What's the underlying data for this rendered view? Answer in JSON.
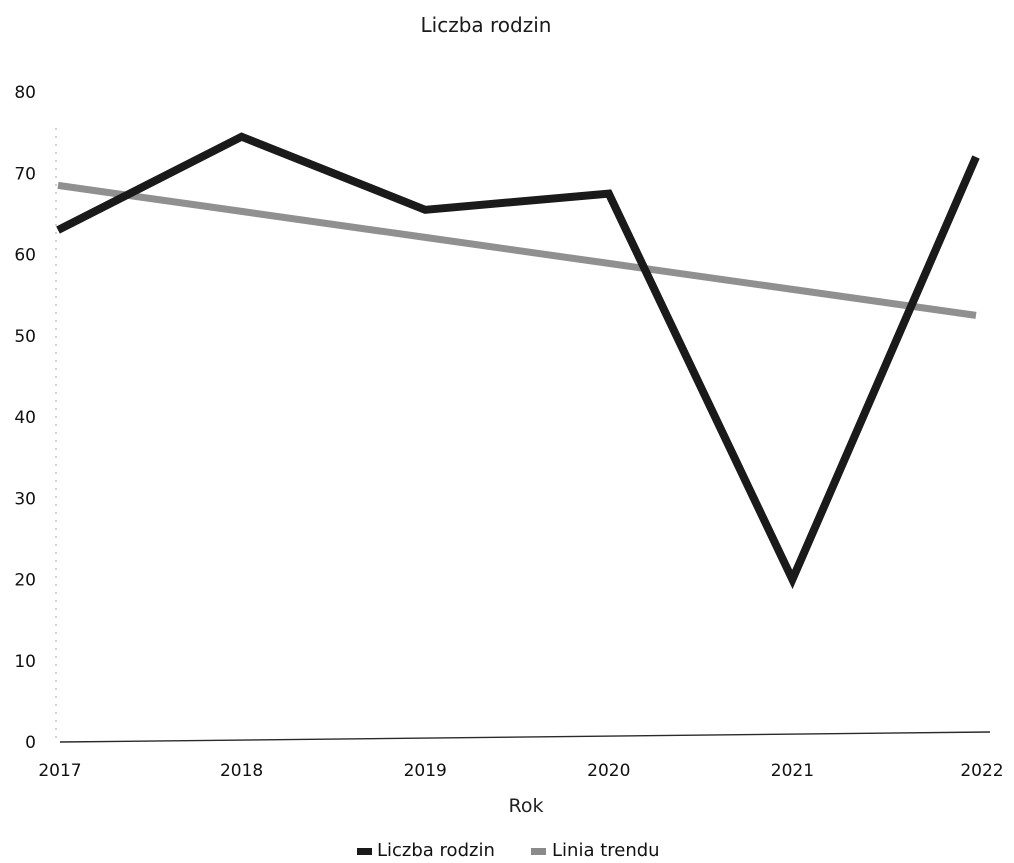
{
  "chart_data": {
    "type": "line",
    "title": "Liczba rodzin",
    "xlabel": "Rok",
    "ylabel": "",
    "x": [
      "2017",
      "2018",
      "2019",
      "2020",
      "2021",
      "2022"
    ],
    "ylim": [
      0,
      80
    ],
    "yticks": [
      0,
      10,
      20,
      30,
      40,
      50,
      60,
      70,
      80
    ],
    "grid": false,
    "legend_position": "bottom",
    "series": [
      {
        "name": "Liczba rodzin",
        "values": [
          63,
          74.5,
          65.5,
          67.5,
          20,
          72
        ],
        "color": "#1a1a1a"
      },
      {
        "name": "Linia trendu",
        "values": [
          68.5,
          65.3,
          62.1,
          58.9,
          55.7,
          52.5
        ],
        "color": "#8a8a8a"
      }
    ]
  }
}
